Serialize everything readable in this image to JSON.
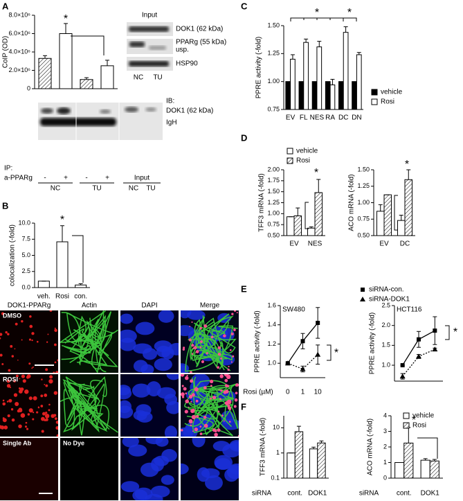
{
  "chart_data": [
    {
      "type": "bar",
      "panel": "A",
      "ylabel": "CoIP (OD)",
      "ylim": [
        0,
        8000000
      ],
      "yticks": [
        0,
        {
          "value": 2000000,
          "label": "2.0×10⁶"
        },
        {
          "value": 4000000,
          "label": "4.0×10⁶"
        },
        {
          "value": 6000000,
          "label": "6.0×10⁶"
        },
        {
          "value": 8000000,
          "label": "8.0×10⁶"
        }
      ],
      "categories": [
        "-",
        "+",
        "-",
        "+"
      ],
      "groups": [
        "NC",
        "TU"
      ],
      "values": [
        3300000,
        6000000,
        1000000,
        2500000
      ],
      "errors": [
        300000,
        1100000,
        200000,
        600000
      ],
      "patterns": [
        "hatch",
        "none",
        "hatch",
        "none"
      ],
      "color": "#000000",
      "annotations": [
        "*"
      ]
    },
    {
      "type": "bar",
      "panel": "B",
      "ylabel": "colocalization (-fold)",
      "ylim": [
        0,
        10
      ],
      "yticks": [
        {
          "value": 0,
          "label": "0.0"
        },
        2.5,
        {
          "value": 5,
          "label": "5.0"
        },
        7.5,
        {
          "value": 10,
          "label": "10.0"
        }
      ],
      "categories": [
        "veh.",
        "Rosi",
        "con."
      ],
      "values": [
        1.0,
        7.1,
        0.4
      ],
      "errors": [
        0,
        2.5,
        0.2
      ],
      "patterns": [
        "none",
        "none",
        "none"
      ],
      "color": "#000000",
      "annotations": [
        "*"
      ]
    },
    {
      "type": "bar",
      "panel": "C",
      "ylabel": "PPRE activity (-fold)",
      "ylim": [
        0.75,
        1.5
      ],
      "yticks": [
        0.75,
        {
          "value": 1,
          "label": "1.00"
        },
        1.25,
        {
          "value": 1.5,
          "label": "1.50"
        }
      ],
      "categories": [
        "EV",
        "FL",
        "NES",
        "RA",
        "DC",
        "DN"
      ],
      "legend": "right",
      "series": [
        {
          "name": "vehicle",
          "color": "#000000",
          "values": [
            1,
            1,
            1,
            1,
            1,
            1
          ]
        },
        {
          "name": "Rosi",
          "color": "#ffffff",
          "values": [
            1.2,
            1.35,
            1.31,
            0.97,
            1.44,
            1.24
          ],
          "errors": [
            0.04,
            0.03,
            0.05,
            0.05,
            0.05,
            0.02
          ]
        }
      ],
      "annotations": [
        "*",
        "*"
      ]
    },
    {
      "type": "bar",
      "panel": "D",
      "ylabel": "TFF3 mRNA (-fold)",
      "ylim": [
        0.5,
        2
      ],
      "yticks": [
        {
          "value": 0.5,
          "label": "0.50"
        },
        0.75,
        {
          "value": 1,
          "label": "1.00"
        },
        1.25,
        {
          "value": 1.5,
          "label": "1.50"
        },
        1.75,
        {
          "value": 2,
          "label": "2.00"
        }
      ],
      "categories": [
        "EV",
        "NES"
      ],
      "legend": "upper left",
      "series": [
        {
          "name": "vehicle",
          "color": "#ffffff",
          "values": [
            0.93,
            0.67
          ],
          "errors": [
            0,
            0.03
          ]
        },
        {
          "name": "Rosi",
          "color": "#ffffff",
          "pattern": "hatch",
          "values": [
            0.95,
            1.48
          ],
          "errors": [
            0.18,
            0.3
          ]
        }
      ],
      "annotations": [
        "*"
      ]
    },
    {
      "type": "bar",
      "ylabel": "ACO mRNA (-fold)",
      "ylim": [
        0.5,
        1.5
      ],
      "yticks": [
        {
          "value": 0.5,
          "label": "0.50"
        },
        0.75,
        {
          "value": 1,
          "label": "1.00"
        },
        1.25,
        {
          "value": 1.5,
          "label": "1.50"
        }
      ],
      "categories": [
        "EV",
        "DC"
      ],
      "series": [
        {
          "color": "#ffffff",
          "values": [
            0.87,
            0.73
          ],
          "errors": [
            0.1,
            0.08
          ]
        },
        {
          "color": "#ffffff",
          "pattern": "hatch",
          "values": [
            1.12,
            1.35
          ],
          "errors": [
            0,
            0.15
          ]
        }
      ],
      "annotations": [
        "*"
      ]
    },
    {
      "type": "line",
      "panel": "E",
      "title": "SW480",
      "ylabel": "PPRE activity (-fold)",
      "xlabel": "Rosi (µM)",
      "categories": [
        "0",
        "1",
        "10"
      ],
      "ylim": [
        0.85,
        1.6
      ],
      "yticks": [
        {
          "value": 1,
          "label": "1.0"
        },
        1.2,
        1.4,
        1.6
      ],
      "legend": "top",
      "series": [
        {
          "name": "siRNA-con.",
          "color": "#000000",
          "marker": "square",
          "line": "solid",
          "values": [
            1.0,
            1.23,
            1.42
          ],
          "errors": [
            0,
            0.08,
            0.16
          ]
        },
        {
          "name": "siRNA-DOK1",
          "color": "#000000",
          "marker": "triangle",
          "line": "dotted",
          "values": [
            1.0,
            0.94,
            1.09
          ],
          "errors": [
            0,
            0.03,
            0.1
          ]
        }
      ],
      "annotations": [
        "*"
      ]
    },
    {
      "type": "line",
      "title": "HCT116",
      "ylabel": "PPRE activity (-fold)",
      "categories": [
        null,
        null,
        null
      ],
      "ylim": [
        0.6,
        2.5
      ],
      "yticks": [
        {
          "value": 1,
          "label": "1.0"
        },
        1.5,
        {
          "value": 2,
          "label": "2.0"
        },
        2.5
      ],
      "series": [
        {
          "color": "#000000",
          "marker": "square",
          "line": "solid",
          "values": [
            1.0,
            1.65,
            1.87
          ],
          "errors": [
            0,
            0.2,
            0.35
          ]
        },
        {
          "color": "#000000",
          "marker": "triangle",
          "line": "dotted",
          "values": [
            0.72,
            1.22,
            1.4
          ],
          "errors": [
            0.07,
            0.05,
            0.03
          ]
        }
      ],
      "annotations": [
        "*"
      ]
    },
    {
      "type": "bar",
      "panel": "F",
      "ylabel": "TFF3 mRNA (-fold)",
      "xlabel": "siRNA",
      "log": true,
      "ylim": [
        0.1,
        30
      ],
      "yticks": [
        0.1,
        1,
        10
      ],
      "categories": [
        "cont.",
        "DOK1"
      ],
      "series": [
        {
          "color": "#ffffff",
          "values": [
            1.0,
            1.45
          ],
          "errors": [
            0,
            0.25
          ]
        },
        {
          "color": "#ffffff",
          "pattern": "hatch",
          "values": [
            7.0,
            2.5
          ],
          "errors": [
            4.5,
            0.5
          ]
        }
      ]
    },
    {
      "type": "bar",
      "ylabel": "ACO mRNA (-fold)",
      "xlabel": "siRNA",
      "ylim": [
        0,
        4
      ],
      "yticks": [
        0,
        1,
        2,
        3,
        4
      ],
      "categories": [
        "cont.",
        "DOK1"
      ],
      "legend": "upper right",
      "series": [
        {
          "name": "vehicle",
          "color": "#ffffff",
          "values": [
            1.0,
            1.15
          ],
          "errors": [
            0,
            0.1
          ]
        },
        {
          "name": "Rosi",
          "color": "#ffffff",
          "pattern": "hatch",
          "values": [
            2.25,
            1.1
          ],
          "errors": [
            1.0,
            0.1
          ]
        }
      ],
      "annotations": [
        "*"
      ]
    }
  ],
  "blot": {
    "ib": "IB:",
    "bands": [
      "DOK1 (62 kDa)",
      "IgH"
    ],
    "ip": "IP:",
    "antibody": "a-PPARg",
    "input": "Input",
    "input_lanes": [
      "NC",
      "TU"
    ]
  },
  "inset": {
    "title": "Input",
    "bands": [
      "DOK1 (62 kDa)",
      "PPARg (55 kDa)",
      "HSP90"
    ],
    "note": "usp.",
    "lanes": [
      "NC",
      "TU"
    ]
  },
  "microscopy": {
    "columns": [
      "DOK1-PPARg",
      "Actin",
      "DAPI",
      "Merge"
    ],
    "rows": [
      "DMSO",
      "ROSI",
      "Single Ab",
      "No Dye"
    ]
  }
}
